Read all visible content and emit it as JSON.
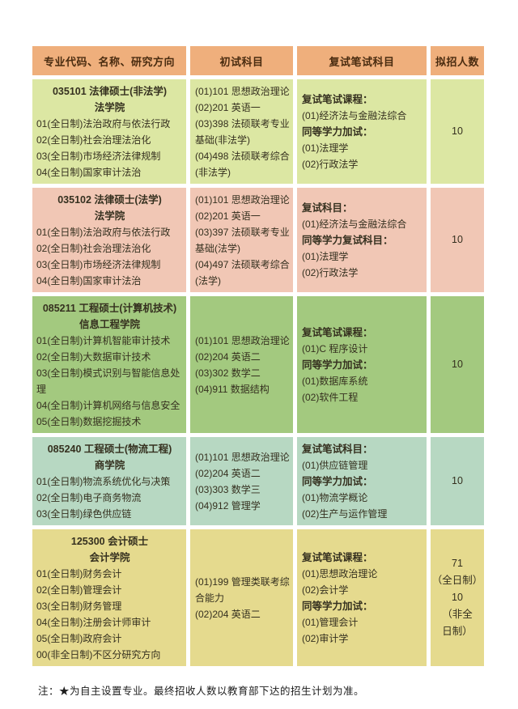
{
  "theme": {
    "header_bg": "#efaf7c",
    "header_text": "#4a2c10",
    "body_text": "#35301f"
  },
  "table": {
    "header": {
      "columns": [
        "专业代码、名称、研究方向",
        "初试科目",
        "复试笔试科目",
        "拟招人数"
      ]
    },
    "rows": [
      {
        "bg": "#dce7a3",
        "program": "035101 法律硕士(非法学)",
        "college": "法学院",
        "directions": [
          "01(全日制)法治政府与依法行政",
          "02(全日制)社会治理法治化",
          "03(全日制)市场经济法律规制",
          "04(全日制)国家审计法治"
        ],
        "initial_subjects": [
          "(01)101 思想政治理论",
          "(02)201 英语一",
          "(03)398 法硕联考专业基础(非法学)",
          "(04)498 法硕联考综合(非法学)"
        ],
        "retest": [
          {
            "text": "复试笔试课程：",
            "bold": true
          },
          {
            "text": "(01)经济法与金融法综合",
            "bold": false
          },
          {
            "text": "同等学力加试：",
            "bold": true
          },
          {
            "text": "(01)法理学",
            "bold": false
          },
          {
            "text": "(02)行政法学",
            "bold": false
          }
        ],
        "quota": [
          "10"
        ]
      },
      {
        "bg": "#f1c7b5",
        "program": "035102 法律硕士(法学)",
        "college": "法学院",
        "directions": [
          "01(全日制)法治政府与依法行政",
          "02(全日制)社会治理法治化",
          "03(全日制)市场经济法律规制",
          "04(全日制)国家审计法治"
        ],
        "initial_subjects": [
          "(01)101 思想政治理论",
          "(02)201 英语一",
          "(03)397 法硕联考专业基础(法学)",
          "(04)497 法硕联考综合(法学)"
        ],
        "retest": [
          {
            "text": "复试科目：",
            "bold": true
          },
          {
            "text": "(01)经济法与金融法综合",
            "bold": false
          },
          {
            "text": "同等学力复试科目：",
            "bold": true
          },
          {
            "text": "(01)法理学",
            "bold": false
          },
          {
            "text": "(02)行政法学",
            "bold": false
          }
        ],
        "quota": [
          "10"
        ]
      },
      {
        "bg": "#a3c97f",
        "program": "085211 工程硕士(计算机技术)",
        "college": "信息工程学院",
        "directions": [
          "01(全日制)计算机智能审计技术",
          "02(全日制)大数据审计技术",
          "03(全日制)模式识别与智能信息处理",
          "04(全日制)计算机网络与信息安全",
          "05(全日制)数据挖掘技术"
        ],
        "initial_subjects": [
          "(01)101 思想政治理论",
          "(02)204 英语二",
          "(03)302 数学二",
          "(04)911 数据结构"
        ],
        "retest": [
          {
            "text": "复试笔试课程：",
            "bold": true
          },
          {
            "text": "(01)C 程序设计",
            "bold": false
          },
          {
            "text": "同等学力加试：",
            "bold": true
          },
          {
            "text": "(01)数据库系统",
            "bold": false
          },
          {
            "text": "(02)软件工程",
            "bold": false
          }
        ],
        "quota": [
          "10"
        ]
      },
      {
        "bg": "#b7d8c2",
        "program": "085240 工程硕士(物流工程)",
        "college": "商学院",
        "directions": [
          "01(全日制)物流系统优化与决策",
          "02(全日制)电子商务物流",
          "03(全日制)绿色供应链"
        ],
        "initial_subjects": [
          "(01)101 思想政治理论",
          "(02)204 英语二",
          "(03)303 数学三",
          "(04)912 管理学"
        ],
        "retest": [
          {
            "text": "复试笔试科目：",
            "bold": true
          },
          {
            "text": "(01)供应链管理",
            "bold": false
          },
          {
            "text": "同等学力加试：",
            "bold": true
          },
          {
            "text": "(01)物流学概论",
            "bold": false
          },
          {
            "text": "(02)生产与运作管理",
            "bold": false
          }
        ],
        "quota": [
          "10"
        ]
      },
      {
        "bg": "#e5da8e",
        "program": "125300 会计硕士",
        "college": "会计学院",
        "directions": [
          "01(全日制)财务会计",
          "02(全日制)管理会计",
          "03(全日制)财务管理",
          "04(全日制)注册会计师审计",
          "05(全日制)政府会计",
          "00(非全日制)不区分研究方向"
        ],
        "initial_subjects": [
          "(01)199 管理类联考综合能力",
          "(02)204 英语二"
        ],
        "retest": [
          {
            "text": "复试笔试课程：",
            "bold": true
          },
          {
            "text": "(01)思想政治理论",
            "bold": false
          },
          {
            "text": "(02)会计学",
            "bold": false
          },
          {
            "text": "同等学力加试：",
            "bold": true
          },
          {
            "text": "(01)管理会计",
            "bold": false
          },
          {
            "text": "(02)审计学",
            "bold": false
          }
        ],
        "quota": [
          "71",
          "（全日制）",
          "10",
          "（非全",
          "日制）"
        ]
      }
    ]
  },
  "note": "注：★为自主设置专业。最终招收人数以教育部下达的招生计划为准。"
}
